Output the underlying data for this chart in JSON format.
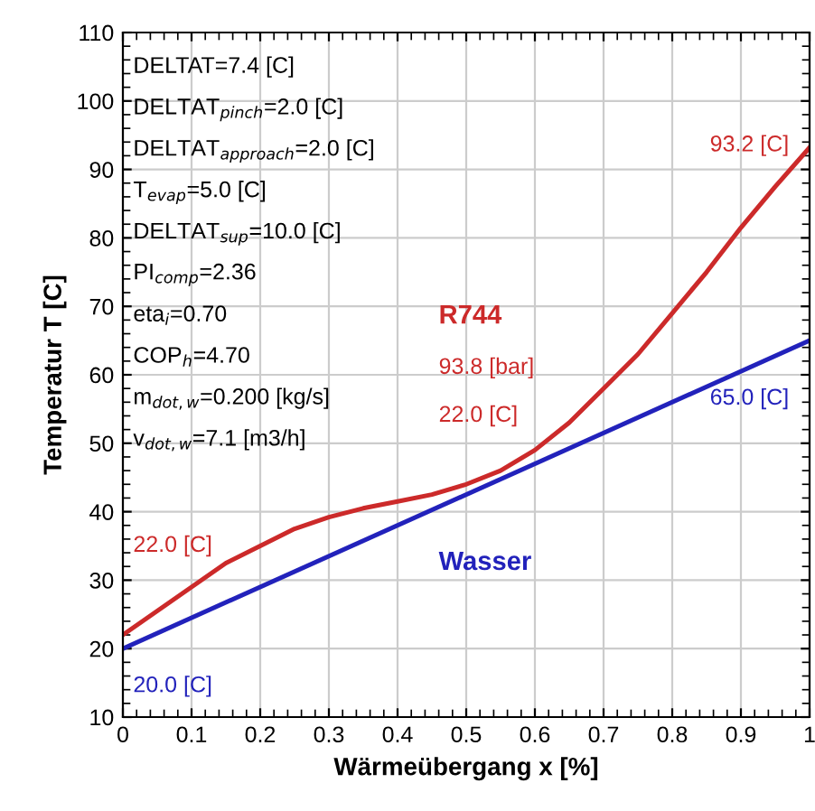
{
  "chart_data": {
    "type": "line",
    "xlabel": "Wärmeübergang x [%]",
    "ylabel": "Temperatur T [C]",
    "x": [
      0,
      0.05,
      0.1,
      0.15,
      0.2,
      0.25,
      0.3,
      0.35,
      0.4,
      0.45,
      0.5,
      0.55,
      0.6,
      0.65,
      0.7,
      0.75,
      0.8,
      0.85,
      0.9,
      0.95,
      1.0
    ],
    "series": [
      {
        "name": "R744",
        "color": "#cc2a2a",
        "values": [
          22.0,
          25.5,
          29,
          32.5,
          35,
          37.5,
          39.2,
          40.5,
          41.5,
          42.5,
          44,
          46,
          49,
          53,
          58,
          63,
          69,
          75,
          81.5,
          87.5,
          93.2
        ]
      },
      {
        "name": "Wasser",
        "color": "#2222bb",
        "x": [
          0,
          1.0
        ],
        "values": [
          20.0,
          65.0
        ]
      }
    ],
    "xlim": [
      0,
      1
    ],
    "ylim": [
      10,
      110
    ],
    "xticks": [
      0,
      0.1,
      0.2,
      0.3,
      0.4,
      0.5,
      0.6,
      0.7,
      0.8,
      0.9,
      1
    ],
    "yticks": [
      10,
      20,
      30,
      40,
      50,
      60,
      70,
      80,
      90,
      100,
      110
    ],
    "grid": true,
    "marker": "none",
    "line_style": "solid",
    "annotations": [
      "DELTAT=7.4 [C]",
      "DELTAT$_{pinch}$=2.0 [C]",
      "DELTAT$_{approach}$=2.0 [C]",
      "T$_{evap}$=5.0 [C]",
      "DELTAT$_{sup}$=10.0 [C]",
      "PI$_{comp}$=2.36",
      "eta$_{i}$=0.70",
      "COP$_{h}$=4.70",
      "m$_{dot,w}$=0.200 [kg/s]",
      "v$_{dot,w}$=7.1 [m3/h]",
      "93.8 [bar]",
      "22.0 [C]",
      "93.2 [C]",
      "22.0 [C]",
      "20.0 [C]",
      "65.0 [C]"
    ]
  }
}
